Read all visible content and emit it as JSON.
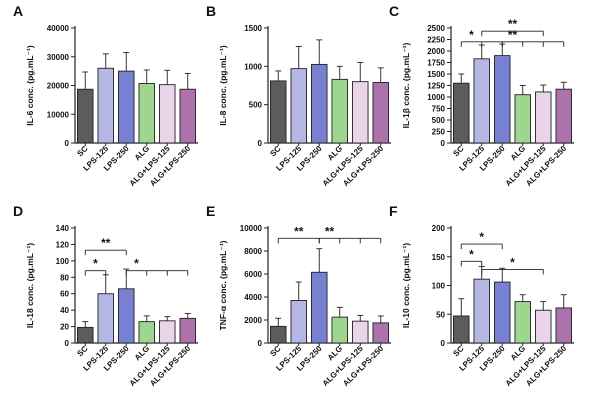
{
  "chart_data": [
    {
      "type": "bar",
      "panel": "A",
      "ylabel": "IL-6 conc. (pg.mL⁻¹)",
      "ylim": [
        0,
        40000
      ],
      "yticks": [
        0,
        10000,
        20000,
        30000,
        40000
      ],
      "categories": [
        "SC",
        "LPS-125",
        "LPS-250",
        "ALG",
        "ALG+LPS-125",
        "ALG+LPS-250"
      ],
      "values": [
        18700,
        26000,
        25000,
        20700,
        20300,
        18700
      ],
      "errors": [
        6000,
        5000,
        6500,
        4700,
        5000,
        5500
      ],
      "significance": []
    },
    {
      "type": "bar",
      "panel": "B",
      "ylabel": "IL-8 conc. (pg.mL⁻¹)",
      "ylim": [
        0,
        1500
      ],
      "yticks": [
        0,
        500,
        1000,
        1500
      ],
      "categories": [
        "SC",
        "LPS-125",
        "LPS-250",
        "ALG",
        "ALG+LPS-125",
        "ALG+LPS-250"
      ],
      "values": [
        810,
        970,
        1025,
        830,
        800,
        790
      ],
      "errors": [
        130,
        290,
        320,
        170,
        250,
        190
      ],
      "significance": []
    },
    {
      "type": "bar",
      "panel": "C",
      "ylabel": "IL-1β conc. (pg.mL⁻¹)",
      "ylim": [
        0,
        2500
      ],
      "yticks": [
        0,
        250,
        500,
        750,
        1000,
        1250,
        1500,
        1750,
        2000,
        2250,
        2500
      ],
      "categories": [
        "SC",
        "LPS-125",
        "LPS-250",
        "ALG",
        "ALG+LPS-125",
        "ALG+LPS-250"
      ],
      "values": [
        1300,
        1830,
        1900,
        1050,
        1110,
        1170
      ],
      "errors": [
        200,
        300,
        250,
        200,
        150,
        150
      ],
      "significance": [
        {
          "from": 0,
          "to": [
            1,
            2
          ],
          "label": "*",
          "level": 2200
        },
        {
          "from": 2,
          "to": [
            3,
            4,
            5
          ],
          "label": "**",
          "level": 2200
        },
        {
          "from": 1,
          "to": [
            4
          ],
          "label": "**",
          "level": 2430
        }
      ]
    },
    {
      "type": "bar",
      "panel": "D",
      "ylabel": "IL-18 conc. (pg.mL⁻¹)",
      "ylim": [
        0,
        140
      ],
      "yticks": [
        0,
        20,
        40,
        60,
        80,
        100,
        120,
        140
      ],
      "categories": [
        "SC",
        "LPS-125",
        "LPS-250",
        "ALG",
        "ALG+LPS-125",
        "ALG+LPS-250"
      ],
      "values": [
        19,
        60,
        66,
        26,
        27,
        30
      ],
      "errors": [
        7,
        23,
        24,
        7,
        5,
        6
      ],
      "significance": [
        {
          "from": 0,
          "to": [
            1
          ],
          "label": "*",
          "level": 88
        },
        {
          "from": 0,
          "to": [
            2
          ],
          "label": "**",
          "level": 113
        },
        {
          "from": 2,
          "to": [
            3,
            4,
            5
          ],
          "label": "*",
          "level": 88
        }
      ]
    },
    {
      "type": "bar",
      "panel": "E",
      "ylabel": "TNF-α conc. (pg.mL⁻¹)",
      "ylim": [
        0,
        10000
      ],
      "yticks": [
        0,
        2000,
        4000,
        6000,
        8000,
        10000
      ],
      "categories": [
        "SC",
        "LPS-125",
        "LPS-250",
        "ALG",
        "ALG+LPS-125",
        "ALG+LPS-250"
      ],
      "values": [
        1450,
        3700,
        6150,
        2250,
        1900,
        1750
      ],
      "errors": [
        700,
        1600,
        2050,
        850,
        500,
        600
      ],
      "significance": [
        {
          "from": 0,
          "to": [
            2
          ],
          "label": "**",
          "level": 9100
        },
        {
          "from": 2,
          "to": [
            3,
            4,
            5
          ],
          "label": "**",
          "level": 9100
        }
      ]
    },
    {
      "type": "bar",
      "panel": "F",
      "ylabel": "IL-10 conc. (pg.mL⁻¹)",
      "ylim": [
        0,
        200
      ],
      "yticks": [
        0,
        50,
        100,
        150,
        200
      ],
      "categories": [
        "SC",
        "LPS-125",
        "LPS-250",
        "ALG",
        "ALG+LPS-125",
        "ALG+LPS-250"
      ],
      "values": [
        47,
        111,
        106,
        72,
        57,
        61
      ],
      "errors": [
        30,
        22,
        24,
        12,
        15,
        23
      ],
      "significance": [
        {
          "from": 0,
          "to": [
            1
          ],
          "label": "*",
          "level": 142
        },
        {
          "from": 0,
          "to": [
            2
          ],
          "label": "*",
          "level": 172
        },
        {
          "from": 1,
          "to": [
            4
          ],
          "label": "*",
          "level": 128
        }
      ]
    }
  ],
  "colors": [
    "#5c5c5c",
    "#b5b8e4",
    "#7880d2",
    "#9ed58f",
    "#ead4ea",
    "#ac72ac"
  ],
  "edge_color": "#222222"
}
